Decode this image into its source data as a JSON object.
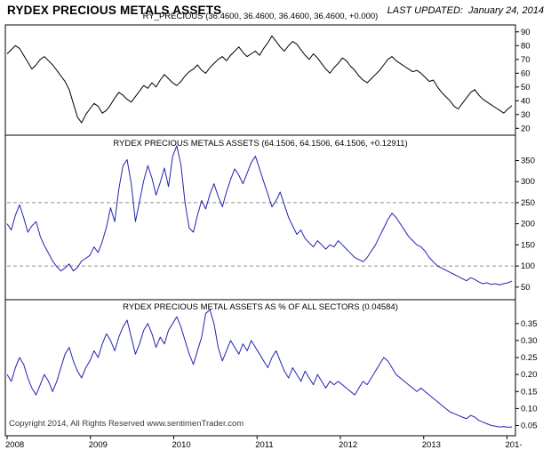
{
  "header": {
    "title": "RYDEX PRECIOUS METALS ASSETS",
    "last_updated_label": "LAST UPDATED:",
    "last_updated_value": "January 24, 2014"
  },
  "footer": {
    "copyright": "Copyright 2014, All Rights Reserved  www.sentimenTrader.com"
  },
  "colors": {
    "border": "#000000",
    "panel1_line": "#000000",
    "panel2_line": "#2222b2",
    "panel3_line": "#2222b2",
    "dashed_line": "#9a8f85",
    "tick_text": "#000000"
  },
  "x_axis": {
    "start": 2008.0,
    "end": 2014.08,
    "tick_positions": [
      2008,
      2009,
      2010,
      2011,
      2012,
      2013,
      2014
    ],
    "tick_labels": [
      "2008",
      "2009",
      "2010",
      "2011",
      "2012",
      "2013",
      "201-"
    ]
  },
  "chart_data": [
    {
      "type": "line",
      "title": "RY_PRECIOUS (36.4600, 36.4600, 36.4600, 36.4600, +0.000)",
      "xlabel": "",
      "ylabel": "",
      "ylim": [
        15,
        95
      ],
      "yticks": [
        20,
        30,
        40,
        50,
        60,
        70,
        80,
        90
      ],
      "ytick_labels": [
        "20",
        "30",
        "40",
        "50",
        "60",
        "70",
        "80",
        "90"
      ],
      "dashed_lines": [],
      "color": "#000000",
      "x_start": 2008.0,
      "x_end": 2014.06,
      "values": [
        74,
        77,
        80,
        78,
        73,
        68,
        63,
        66,
        70,
        72,
        69,
        66,
        62,
        58,
        54,
        48,
        38,
        28,
        24,
        30,
        34,
        38,
        36,
        31,
        33,
        37,
        42,
        46,
        44,
        41,
        39,
        43,
        47,
        51,
        49,
        53,
        50,
        55,
        59,
        56,
        53,
        51,
        54,
        58,
        61,
        63,
        66,
        62,
        60,
        64,
        67,
        70,
        72,
        69,
        73,
        76,
        79,
        75,
        72,
        74,
        76,
        73,
        78,
        82,
        87,
        83,
        79,
        76,
        80,
        83,
        81,
        77,
        73,
        70,
        74,
        71,
        67,
        63,
        60,
        64,
        67,
        71,
        69,
        65,
        62,
        58,
        55,
        53,
        56,
        59,
        62,
        66,
        70,
        72,
        69,
        67,
        65,
        63,
        61,
        62,
        60,
        57,
        54,
        55,
        50,
        46,
        43,
        40,
        36,
        34,
        38,
        42,
        46,
        48,
        44,
        41,
        39,
        37,
        35,
        33,
        31,
        34,
        36.5
      ]
    },
    {
      "type": "line",
      "title": "RYDEX PRECIOUS METALS ASSETS (64.1506, 64.1506, 64.1506, +0.12911)",
      "xlabel": "",
      "ylabel": "",
      "ylim": [
        20,
        410
      ],
      "yticks": [
        50,
        100,
        150,
        200,
        250,
        300,
        350
      ],
      "ytick_labels": [
        "50",
        "100",
        "150",
        "200",
        "250",
        "300",
        "350"
      ],
      "dashed_lines": [
        250,
        100
      ],
      "color": "#2222b2",
      "x_start": 2008.0,
      "x_end": 2014.06,
      "values": [
        200,
        185,
        220,
        245,
        215,
        180,
        195,
        205,
        170,
        148,
        130,
        112,
        98,
        88,
        95,
        105,
        88,
        96,
        112,
        118,
        125,
        145,
        132,
        158,
        192,
        238,
        205,
        282,
        338,
        352,
        295,
        205,
        252,
        302,
        338,
        308,
        268,
        298,
        332,
        288,
        360,
        385,
        340,
        250,
        190,
        180,
        220,
        255,
        235,
        270,
        295,
        265,
        240,
        275,
        305,
        330,
        315,
        295,
        320,
        345,
        360,
        330,
        300,
        270,
        240,
        255,
        275,
        245,
        215,
        195,
        175,
        185,
        165,
        155,
        145,
        160,
        150,
        140,
        150,
        145,
        160,
        150,
        140,
        130,
        120,
        115,
        110,
        120,
        135,
        150,
        170,
        190,
        210,
        225,
        215,
        200,
        185,
        170,
        160,
        150,
        145,
        135,
        120,
        110,
        100,
        95,
        90,
        85,
        80,
        75,
        70,
        65,
        72,
        68,
        62,
        58,
        60,
        56,
        58,
        55,
        58,
        60,
        64.15
      ]
    },
    {
      "type": "line",
      "title": "RYDEX PRECIOUS METAL ASSETS AS % OF ALL SECTORS (0.04584)",
      "xlabel": "",
      "ylabel": "",
      "ylim": [
        0.02,
        0.42
      ],
      "yticks": [
        0.05,
        0.1,
        0.15,
        0.2,
        0.25,
        0.3,
        0.35
      ],
      "ytick_labels": [
        "0.05",
        "0.10",
        "0.15",
        "0.20",
        "0.25",
        "0.30",
        "0.35"
      ],
      "dashed_lines": [],
      "color": "#2222b2",
      "x_start": 2008.0,
      "x_end": 2014.06,
      "values": [
        0.2,
        0.18,
        0.22,
        0.25,
        0.23,
        0.19,
        0.16,
        0.14,
        0.17,
        0.2,
        0.18,
        0.15,
        0.18,
        0.22,
        0.26,
        0.28,
        0.24,
        0.21,
        0.19,
        0.22,
        0.24,
        0.27,
        0.25,
        0.29,
        0.32,
        0.3,
        0.27,
        0.31,
        0.34,
        0.36,
        0.31,
        0.26,
        0.29,
        0.33,
        0.35,
        0.32,
        0.28,
        0.31,
        0.29,
        0.33,
        0.35,
        0.37,
        0.34,
        0.3,
        0.26,
        0.23,
        0.27,
        0.31,
        0.38,
        0.39,
        0.35,
        0.28,
        0.24,
        0.27,
        0.3,
        0.28,
        0.26,
        0.29,
        0.27,
        0.3,
        0.28,
        0.26,
        0.24,
        0.22,
        0.25,
        0.27,
        0.24,
        0.21,
        0.19,
        0.22,
        0.2,
        0.18,
        0.21,
        0.19,
        0.17,
        0.2,
        0.18,
        0.16,
        0.18,
        0.17,
        0.18,
        0.17,
        0.16,
        0.15,
        0.14,
        0.16,
        0.18,
        0.17,
        0.19,
        0.21,
        0.23,
        0.25,
        0.24,
        0.22,
        0.2,
        0.19,
        0.18,
        0.17,
        0.16,
        0.15,
        0.16,
        0.15,
        0.14,
        0.13,
        0.12,
        0.11,
        0.1,
        0.09,
        0.085,
        0.08,
        0.075,
        0.07,
        0.08,
        0.075,
        0.065,
        0.06,
        0.055,
        0.05,
        0.048,
        0.046,
        0.047,
        0.045,
        0.04584
      ]
    }
  ]
}
